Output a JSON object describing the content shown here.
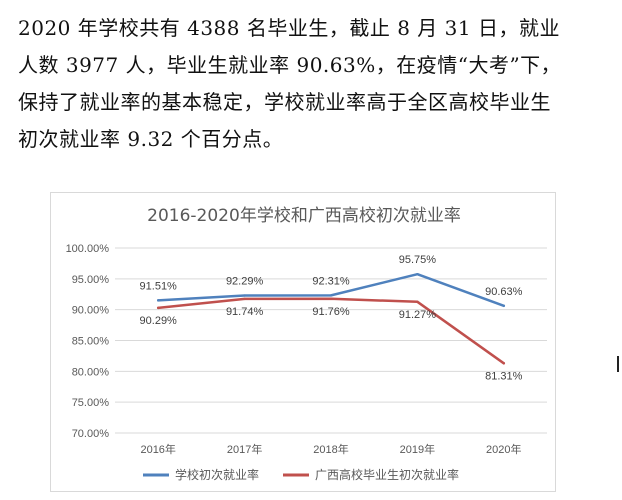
{
  "text": {
    "lines": [
      "2020 年学校共有 4388 名毕业生，截止 8 月 31 日，就业",
      "人数 3977 人，毕业生就业率 90.63%，在疫情“大考”下，",
      "保持了就业率的基本稳定，学校就业率高于全区高校毕业生",
      "初次就业率 9.32 个百分点。"
    ]
  },
  "chart_data": {
    "type": "line",
    "title": "2016-2020年学校和广西高校初次就业率",
    "categories": [
      "2016年",
      "2017年",
      "2018年",
      "2019年",
      "2020年"
    ],
    "y_ticks": [
      "100.00%",
      "95.00%",
      "90.00%",
      "85.00%",
      "80.00%",
      "75.00%",
      "70.00%"
    ],
    "ylim": [
      70,
      100
    ],
    "grid": true,
    "legend_position": "bottom",
    "series": [
      {
        "name": "学校初次就业率",
        "color": "#4f81bd",
        "values": [
          91.51,
          92.29,
          92.31,
          95.75,
          90.63
        ],
        "labels": [
          "91.51%",
          "92.29%",
          "92.31%",
          "95.75%",
          "90.63%"
        ]
      },
      {
        "name": "广西高校毕业生初次就业率",
        "color": "#c0504d",
        "values": [
          90.29,
          91.74,
          91.76,
          91.27,
          81.31
        ],
        "labels": [
          "90.29%",
          "91.74%",
          "91.76%",
          "91.27%",
          "81.31%"
        ]
      }
    ]
  }
}
